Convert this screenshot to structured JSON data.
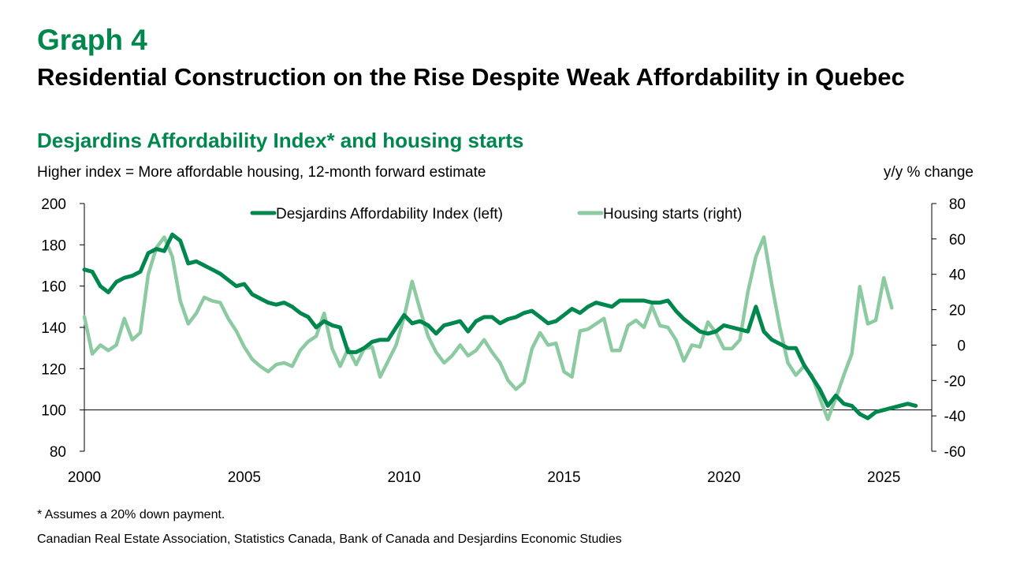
{
  "header": {
    "graph_label": "Graph 4",
    "title": "Residential Construction on the Rise Despite Weak Affordability in Quebec"
  },
  "chart_data": {
    "type": "line",
    "title": "Desjardins Affordability Index* and housing starts",
    "left_axis_note": "Higher index = More affordable housing, 12-month forward estimate",
    "right_axis_note": "y/y % change",
    "x_ticks": [
      "2000",
      "2005",
      "2010",
      "2015",
      "2020",
      "2025"
    ],
    "xlim": [
      2000,
      2026.5
    ],
    "y_left": {
      "lim": [
        80,
        200
      ],
      "ticks": [
        "80",
        "100",
        "120",
        "140",
        "160",
        "180",
        "200"
      ]
    },
    "y_right": {
      "lim": [
        -60,
        80
      ],
      "ticks": [
        "-60",
        "-40",
        "-20",
        "0",
        "20",
        "40",
        "60",
        "80"
      ]
    },
    "legend_position": "top-center",
    "colors": {
      "affordability": "#00874E",
      "starts": "#8CCBA2",
      "title_green": "#00874E"
    },
    "series": [
      {
        "name": "Desjardins Affordability Index (left)",
        "axis": "left",
        "x": [
          2000.0,
          2000.25,
          2000.5,
          2000.75,
          2001.0,
          2001.25,
          2001.5,
          2001.75,
          2002.0,
          2002.25,
          2002.5,
          2002.75,
          2003.0,
          2003.25,
          2003.5,
          2003.75,
          2004.0,
          2004.25,
          2004.5,
          2004.75,
          2005.0,
          2005.25,
          2005.5,
          2005.75,
          2006.0,
          2006.25,
          2006.5,
          2006.75,
          2007.0,
          2007.25,
          2007.5,
          2007.75,
          2008.0,
          2008.25,
          2008.5,
          2008.75,
          2009.0,
          2009.25,
          2009.5,
          2009.75,
          2010.0,
          2010.25,
          2010.5,
          2010.75,
          2011.0,
          2011.25,
          2011.5,
          2011.75,
          2012.0,
          2012.25,
          2012.5,
          2012.75,
          2013.0,
          2013.25,
          2013.5,
          2013.75,
          2014.0,
          2014.25,
          2014.5,
          2014.75,
          2015.0,
          2015.25,
          2015.5,
          2015.75,
          2016.0,
          2016.25,
          2016.5,
          2016.75,
          2017.0,
          2017.25,
          2017.5,
          2017.75,
          2018.0,
          2018.25,
          2018.5,
          2018.75,
          2019.0,
          2019.25,
          2019.5,
          2019.75,
          2020.0,
          2020.25,
          2020.5,
          2020.75,
          2021.0,
          2021.25,
          2021.5,
          2021.75,
          2022.0,
          2022.25,
          2022.5,
          2022.75,
          2023.0,
          2023.25,
          2023.5,
          2023.75,
          2024.0,
          2024.25,
          2024.5,
          2024.75,
          2025.0,
          2025.25,
          2025.5,
          2025.75,
          2026.0
        ],
        "values": [
          168,
          167,
          160,
          157,
          162,
          164,
          165,
          167,
          176,
          178,
          177,
          185,
          182,
          171,
          172,
          170,
          168,
          166,
          163,
          160,
          161,
          156,
          154,
          152,
          151,
          152,
          150,
          147,
          145,
          140,
          143,
          141,
          140,
          128,
          128,
          130,
          133,
          134,
          134,
          140,
          146,
          142,
          143,
          141,
          137,
          141,
          142,
          143,
          138,
          143,
          145,
          145,
          142,
          144,
          145,
          147,
          148,
          145,
          142,
          143,
          146,
          149,
          147,
          150,
          152,
          151,
          150,
          153,
          153,
          153,
          153,
          152,
          152,
          153,
          148,
          144,
          141,
          138,
          137,
          138,
          141,
          140,
          139,
          138,
          150,
          138,
          134,
          132,
          130,
          130,
          122,
          116,
          110,
          102,
          107,
          103,
          102,
          98,
          96,
          99,
          100,
          101,
          102,
          103,
          102
        ]
      },
      {
        "name": "Housing starts (right)",
        "axis": "right",
        "x": [
          2000.0,
          2000.25,
          2000.5,
          2000.75,
          2001.0,
          2001.25,
          2001.5,
          2001.75,
          2002.0,
          2002.25,
          2002.5,
          2002.75,
          2003.0,
          2003.25,
          2003.5,
          2003.75,
          2004.0,
          2004.25,
          2004.5,
          2004.75,
          2005.0,
          2005.25,
          2005.5,
          2005.75,
          2006.0,
          2006.25,
          2006.5,
          2006.75,
          2007.0,
          2007.25,
          2007.5,
          2007.75,
          2008.0,
          2008.25,
          2008.5,
          2008.75,
          2009.0,
          2009.25,
          2009.5,
          2009.75,
          2010.0,
          2010.25,
          2010.5,
          2010.75,
          2011.0,
          2011.25,
          2011.5,
          2011.75,
          2012.0,
          2012.25,
          2012.5,
          2012.75,
          2013.0,
          2013.25,
          2013.5,
          2013.75,
          2014.0,
          2014.25,
          2014.5,
          2014.75,
          2015.0,
          2015.25,
          2015.5,
          2015.75,
          2016.0,
          2016.25,
          2016.5,
          2016.75,
          2017.0,
          2017.25,
          2017.5,
          2017.75,
          2018.0,
          2018.25,
          2018.5,
          2018.75,
          2019.0,
          2019.25,
          2019.5,
          2019.75,
          2020.0,
          2020.25,
          2020.5,
          2020.75,
          2021.0,
          2021.25,
          2021.5,
          2021.75,
          2022.0,
          2022.25,
          2022.5,
          2022.75,
          2023.0,
          2023.25,
          2023.5,
          2023.75,
          2024.0,
          2024.25,
          2024.5,
          2024.75,
          2025.0,
          2025.25
        ],
        "values": [
          16,
          -5,
          0,
          -3,
          0,
          15,
          3,
          7,
          40,
          55,
          61,
          50,
          25,
          12,
          18,
          27,
          25,
          24,
          15,
          8,
          -1,
          -8,
          -12,
          -15,
          -11,
          -10,
          -12,
          -3,
          2,
          5,
          18,
          -2,
          -12,
          -2,
          -11,
          -2,
          -1,
          -18,
          -9,
          0,
          16,
          36,
          20,
          5,
          -4,
          -10,
          -6,
          0,
          -6,
          -3,
          3,
          -4,
          -10,
          -20,
          -25,
          -21,
          -2,
          7,
          0,
          1,
          -15,
          -18,
          8,
          9,
          12,
          15,
          -3,
          -3,
          11,
          14,
          10,
          22,
          11,
          10,
          3,
          -9,
          0,
          -1,
          13,
          7,
          -2,
          -2,
          3,
          30,
          50,
          61,
          34,
          10,
          -10,
          -17,
          -12,
          -17,
          -30,
          -42,
          -30,
          -17,
          -5,
          33,
          12,
          14,
          38,
          21
        ]
      }
    ],
    "footnote": "* Assumes a 20% down payment.",
    "source": "Canadian Real Estate Association, Statistics Canada, Bank of Canada and Desjardins Economic Studies"
  }
}
